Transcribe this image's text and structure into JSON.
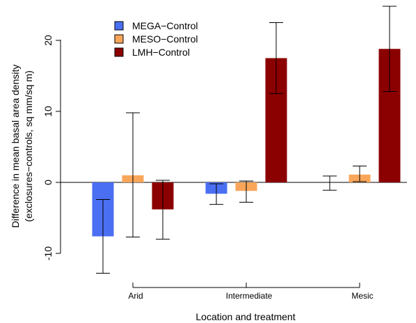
{
  "chart_data": {
    "type": "bar",
    "title": "",
    "xlabel": "Location and treatment",
    "ylabel": "Difference in mean basal area density",
    "ylabel2": "(exclosures−controls, sq mm/sq m)",
    "categories": [
      "Arid",
      "Intermediate",
      "Mesic"
    ],
    "ylim": [
      -13,
      25
    ],
    "yticks": [
      "-10",
      "0",
      "10",
      "20"
    ],
    "series": [
      {
        "name": "MEGA−Control",
        "color": "#4a6ff2",
        "values": [
          -7.6,
          -1.6,
          0.0
        ],
        "err_low": [
          -12.8,
          -3.1,
          -1.1
        ],
        "err_high": [
          -2.4,
          -0.2,
          0.9
        ]
      },
      {
        "name": "MESO−Control",
        "color": "#f9a65a",
        "values": [
          1.0,
          -1.2,
          1.1
        ],
        "err_low": [
          -7.7,
          -2.8,
          0.1
        ],
        "err_high": [
          9.8,
          0.2,
          2.3
        ]
      },
      {
        "name": "LMH−Control",
        "color": "#8b0000",
        "values": [
          -3.8,
          17.5,
          18.8
        ],
        "err_low": [
          -8.0,
          12.5,
          12.8
        ],
        "err_high": [
          0.3,
          22.5,
          24.8
        ]
      }
    ],
    "legend_position": "top-left",
    "grid": false,
    "zero_line": true
  }
}
